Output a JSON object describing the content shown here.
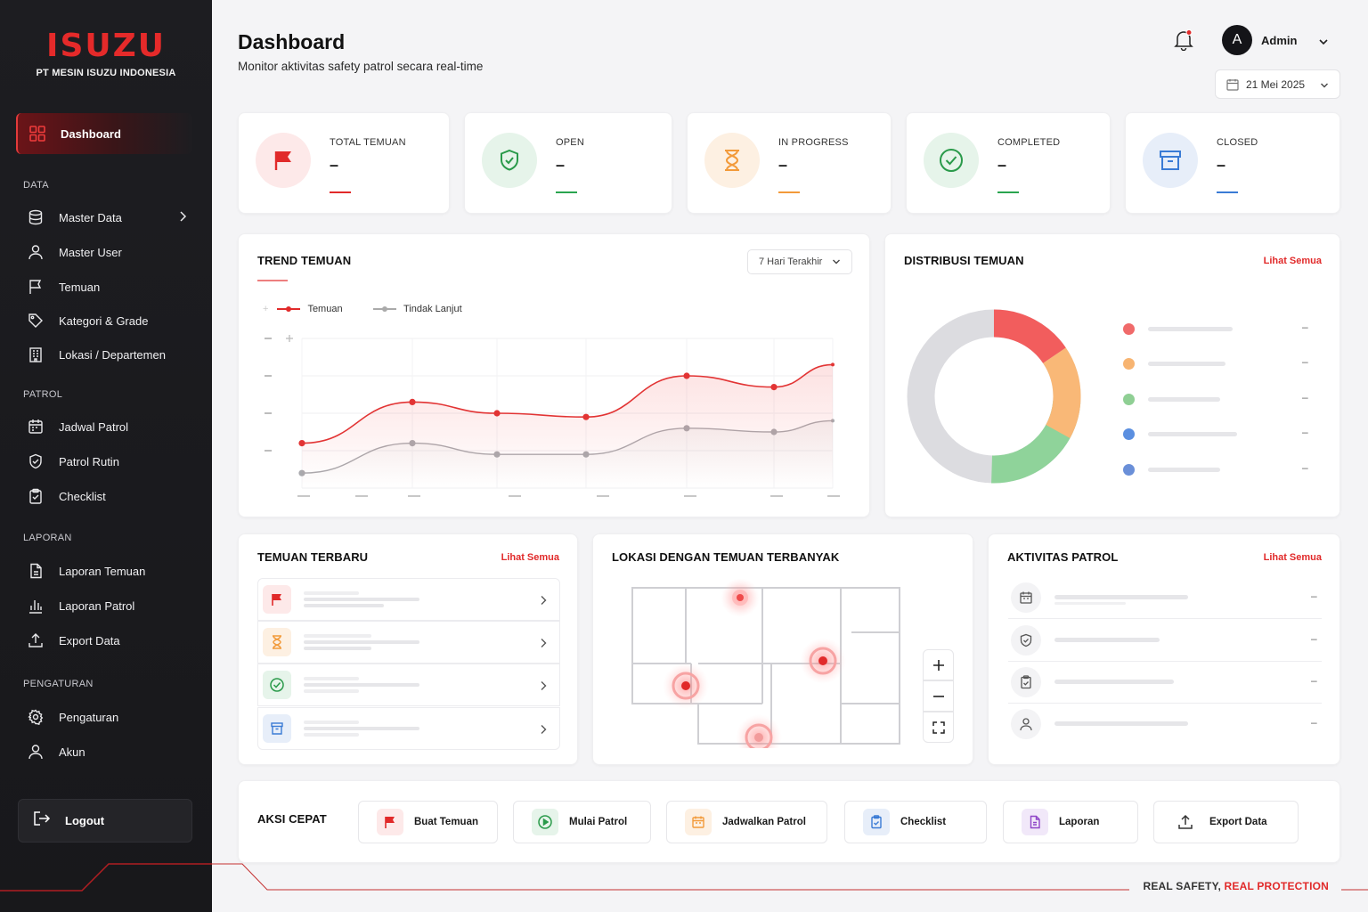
{
  "brand": {
    "logo_text": "ISUZU",
    "company": "PT MESIN ISUZU INDONESIA"
  },
  "sidebar": {
    "active_item": "Dashboard",
    "sections": {
      "data": "DATA",
      "patrol": "PATROL",
      "laporan": "LAPORAN",
      "pengaturan": "PENGATURAN"
    },
    "items": {
      "master_data": "Master Data",
      "master_user": "Master User",
      "temuan": "Temuan",
      "kategori": "Kategori & Grade",
      "lokasi": "Lokasi / Departemen",
      "jadwal": "Jadwal Patrol",
      "rutin": "Patrol Rutin",
      "checklist": "Checklist",
      "laporan_temuan": "Laporan Temuan",
      "laporan_patrol": "Laporan Patrol",
      "export": "Export Data",
      "pengaturan": "Pengaturan",
      "akun": "Akun"
    },
    "logout": "Logout"
  },
  "header": {
    "title": "Dashboard",
    "subtitle": "Monitor aktivitas safety patrol secara real-time",
    "user_initial": "A",
    "user_name": "Admin",
    "date": "21 Mei 2025"
  },
  "stats": [
    {
      "label": "TOTAL TEMUAN",
      "value": "–",
      "color": "#e12a2a"
    },
    {
      "label": "OPEN",
      "value": "–",
      "color": "#2aa44f"
    },
    {
      "label": "IN PROGRESS",
      "value": "–",
      "color": "#f29a3a"
    },
    {
      "label": "COMPLETED",
      "value": "–",
      "color": "#2aa44f"
    },
    {
      "label": "CLOSED",
      "value": "–",
      "color": "#3a7bd5"
    }
  ],
  "trend": {
    "title": "TREND TEMUAN",
    "range": "7 Hari Terakhir",
    "legend": {
      "temuan": "Temuan",
      "tindak": "Tindak Lanjut"
    }
  },
  "chart_data": {
    "type": "line",
    "series": [
      {
        "name": "Temuan",
        "values": [
          1.2,
          2.3,
          2.0,
          1.9,
          3.0,
          2.7,
          3.3
        ]
      },
      {
        "name": "Tindak Lanjut",
        "values": [
          0.4,
          1.2,
          0.9,
          0.9,
          1.6,
          1.5,
          1.8
        ]
      }
    ],
    "ylim": [
      0,
      4
    ],
    "grid": true
  },
  "distribusi": {
    "title": "DISTRIBUSI TEMUAN",
    "link": "Lihat Semua",
    "legend_colors": [
      "#f06a6a",
      "#f7b471",
      "#8fcf94",
      "#5b8fe0",
      "#6a8fd8"
    ],
    "donut_colors": [
      "#f25d5d",
      "#f9b877",
      "#8fd39a",
      "#dcdce0"
    ],
    "values": [
      "–",
      "–",
      "–",
      "–",
      "–"
    ]
  },
  "terbaru": {
    "title": "TEMUAN TERBARU",
    "link": "Lihat Semua"
  },
  "lokasi": {
    "title": "LOKASI DENGAN TEMUAN TERBANYAK"
  },
  "aktivitas": {
    "title": "AKTIVITAS PATROL",
    "link": "Lihat Semua",
    "values": [
      "–",
      "–",
      "–",
      "–"
    ]
  },
  "aksi": {
    "title": "AKSI CEPAT",
    "buttons": [
      "Buat Temuan",
      "Mulai Patrol",
      "Jadwalkan Patrol",
      "Checklist",
      "Laporan",
      "Export Data"
    ]
  },
  "tagline": {
    "part1": "REAL SAFETY,",
    "part2": "REAL PROTECTION"
  }
}
